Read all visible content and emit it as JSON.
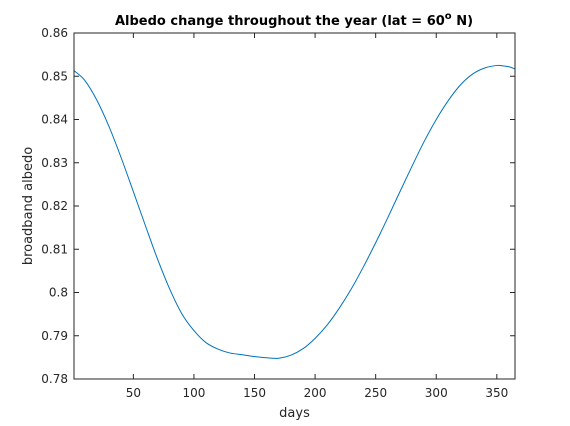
{
  "chart_data": {
    "type": "line",
    "title_main": "Albedo change throughout the year (lat = 60",
    "title_sup": "o",
    "title_end": " N)",
    "xlabel": "days",
    "ylabel": "broadband albedo",
    "xlim": [
      1,
      365
    ],
    "ylim": [
      0.78,
      0.86
    ],
    "xticks": [
      50,
      100,
      150,
      200,
      250,
      300,
      350
    ],
    "yticks": [
      0.78,
      0.79,
      0.8,
      0.81,
      0.82,
      0.83,
      0.84,
      0.85,
      0.86
    ],
    "xtick_labels": [
      "50",
      "100",
      "150",
      "200",
      "250",
      "300",
      "350"
    ],
    "ytick_labels": [
      "0.78",
      "0.79",
      "0.8",
      "0.81",
      "0.82",
      "0.83",
      "0.84",
      "0.85",
      "0.86"
    ],
    "grid": false,
    "series": [
      {
        "color": "#0072BD",
        "x": [
          1,
          10,
          20,
          30,
          40,
          50,
          60,
          70,
          80,
          90,
          100,
          110,
          120,
          130,
          140,
          150,
          160,
          170,
          180,
          190,
          200,
          210,
          220,
          230,
          240,
          250,
          260,
          270,
          280,
          290,
          300,
          310,
          320,
          330,
          340,
          350,
          355,
          360,
          365
        ],
        "y": [
          0.8513,
          0.849,
          0.8444,
          0.8383,
          0.8311,
          0.8233,
          0.8154,
          0.8077,
          0.8008,
          0.7951,
          0.7912,
          0.7884,
          0.7869,
          0.786,
          0.7856,
          0.7852,
          0.7849,
          0.7848,
          0.7855,
          0.787,
          0.7894,
          0.7925,
          0.7964,
          0.8009,
          0.806,
          0.8115,
          0.8173,
          0.8233,
          0.8292,
          0.8349,
          0.84,
          0.8444,
          0.848,
          0.8505,
          0.8519,
          0.8525,
          0.8524,
          0.8522,
          0.8517
        ]
      }
    ]
  }
}
